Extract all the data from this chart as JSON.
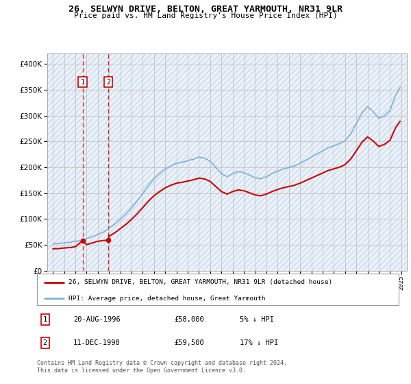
{
  "title": "26, SELWYN DRIVE, BELTON, GREAT YARMOUTH, NR31 9LR",
  "subtitle": "Price paid vs. HM Land Registry's House Price Index (HPI)",
  "hpi_color": "#7ab0d8",
  "price_color": "#cc0000",
  "marker_color": "#cc0000",
  "purchases": [
    {
      "date_num": 1996.64,
      "price": 58000,
      "label": "1",
      "date_str": "20-AUG-1996",
      "pct": "5% ↓ HPI"
    },
    {
      "date_num": 1998.94,
      "price": 59500,
      "label": "2",
      "date_str": "11-DEC-1998",
      "pct": "17% ↓ HPI"
    }
  ],
  "legend_line1": "26, SELWYN DRIVE, BELTON, GREAT YARMOUTH, NR31 9LR (detached house)",
  "legend_line2": "HPI: Average price, detached house, Great Yarmouth",
  "footer": "Contains HM Land Registry data © Crown copyright and database right 2024.\nThis data is licensed under the Open Government Licence v3.0.",
  "xlim": [
    1993.5,
    2025.5
  ],
  "ylim": [
    0,
    420000
  ],
  "yticks": [
    0,
    50000,
    100000,
    150000,
    200000,
    250000,
    300000,
    350000,
    400000
  ],
  "xticks": [
    1994,
    1995,
    1996,
    1997,
    1998,
    1999,
    2000,
    2001,
    2002,
    2003,
    2004,
    2005,
    2006,
    2007,
    2008,
    2009,
    2010,
    2011,
    2012,
    2013,
    2014,
    2015,
    2016,
    2017,
    2018,
    2019,
    2020,
    2021,
    2022,
    2023,
    2024,
    2025
  ]
}
